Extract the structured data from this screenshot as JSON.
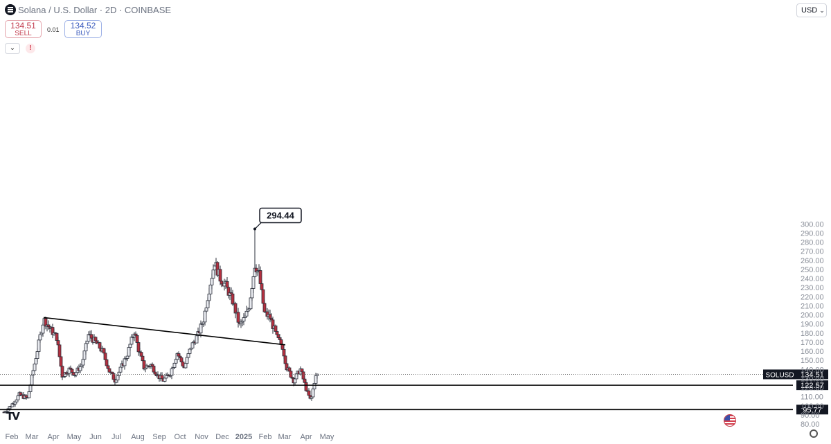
{
  "header": {
    "title": "Solana / U.S. Dollar · 2D · COINBASE",
    "sell_price": "134.51",
    "sell_label": "SELL",
    "spread": "0.01",
    "buy_price": "134.52",
    "buy_label": "BUY",
    "currency": "USD"
  },
  "icons": {
    "menu": "menu-icon",
    "collapse": "chevron-down-icon",
    "alert": "exclamation-icon",
    "logo": "tradingview-logo-icon",
    "flag": "us-flag-icon",
    "settings": "gear-icon"
  },
  "colors": {
    "up": "#e8eaef",
    "down": "#b5303f",
    "outline": "#2a2e39",
    "line": "#000000"
  },
  "chart_data": {
    "type": "candlestick",
    "symbol": "SOLUSD",
    "interval": "2D",
    "ylim": [
      78,
      303
    ],
    "y_ticks": [
      "80.00",
      "90.00",
      "100.00",
      "110.00",
      "120.00",
      "130.00",
      "140.00",
      "150.00",
      "160.00",
      "170.00",
      "180.00",
      "190.00",
      "200.00",
      "210.00",
      "220.00",
      "230.00",
      "240.00",
      "250.00",
      "260.00",
      "270.00",
      "280.00",
      "290.00",
      "300.00"
    ],
    "x_tick_labels": [
      "Feb",
      "Mar",
      "Apr",
      "May",
      "Jun",
      "Jul",
      "Aug",
      "Sep",
      "Oct",
      "Nov",
      "Dec",
      "2025",
      "Feb",
      "Mar",
      "Apr",
      "May"
    ],
    "last_price_label": "SOLUSD",
    "last_price": "134.51",
    "peak_label": "294.44",
    "support_levels": [
      "122.57",
      "95.77"
    ],
    "trendline": {
      "from": {
        "date": "2024-03-20",
        "value": 197
      },
      "to": {
        "date": "2025-03-04",
        "value": 167
      }
    },
    "anchors": [
      [
        "2024-01-23",
        93
      ],
      [
        "2024-02-02",
        100
      ],
      [
        "2024-02-14",
        112
      ],
      [
        "2024-02-26",
        108
      ],
      [
        "2024-03-04",
        135
      ],
      [
        "2024-03-12",
        165
      ],
      [
        "2024-03-20",
        195
      ],
      [
        "2024-03-30",
        184
      ],
      [
        "2024-04-08",
        175
      ],
      [
        "2024-04-16",
        133
      ],
      [
        "2024-04-26",
        140
      ],
      [
        "2024-05-04",
        135
      ],
      [
        "2024-05-14",
        145
      ],
      [
        "2024-05-24",
        178
      ],
      [
        "2024-06-03",
        170
      ],
      [
        "2024-06-13",
        160
      ],
      [
        "2024-06-23",
        138
      ],
      [
        "2024-07-01",
        128
      ],
      [
        "2024-07-09",
        140
      ],
      [
        "2024-07-19",
        157
      ],
      [
        "2024-07-29",
        182
      ],
      [
        "2024-08-04",
        162
      ],
      [
        "2024-08-12",
        142
      ],
      [
        "2024-08-22",
        145
      ],
      [
        "2024-09-01",
        133
      ],
      [
        "2024-09-09",
        128
      ],
      [
        "2024-09-19",
        136
      ],
      [
        "2024-09-29",
        158
      ],
      [
        "2024-10-09",
        142
      ],
      [
        "2024-10-19",
        165
      ],
      [
        "2024-10-29",
        178
      ],
      [
        "2024-11-06",
        195
      ],
      [
        "2024-11-14",
        228
      ],
      [
        "2024-11-22",
        258
      ],
      [
        "2024-11-30",
        240
      ],
      [
        "2024-12-08",
        232
      ],
      [
        "2024-12-18",
        215
      ],
      [
        "2024-12-28",
        188
      ],
      [
        "2025-01-05",
        197
      ],
      [
        "2025-01-11",
        210
      ],
      [
        "2025-01-19",
        255
      ],
      [
        "2025-01-25",
        245
      ],
      [
        "2025-02-02",
        202
      ],
      [
        "2025-02-10",
        197
      ],
      [
        "2025-02-20",
        175
      ],
      [
        "2025-02-28",
        165
      ],
      [
        "2025-03-06",
        142
      ],
      [
        "2025-03-16",
        128
      ],
      [
        "2025-03-26",
        140
      ],
      [
        "2025-04-04",
        116
      ],
      [
        "2025-04-10",
        105
      ],
      [
        "2025-04-16",
        131
      ],
      [
        "2025-04-20",
        134.5
      ]
    ]
  }
}
